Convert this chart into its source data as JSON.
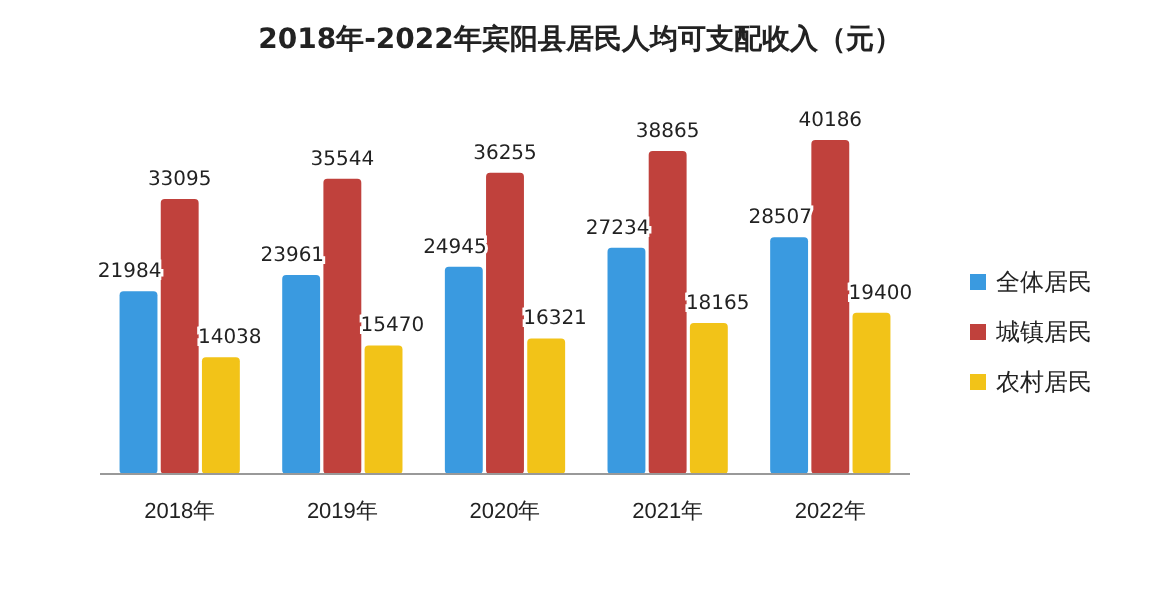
{
  "chart_data": {
    "type": "bar",
    "title": "2018年-2022年宾阳县居民人均可支配收入（元）",
    "categories": [
      "2018年",
      "2019年",
      "2020年",
      "2021年",
      "2022年"
    ],
    "series": [
      {
        "name": "全体居民",
        "color": "#3a9ae0",
        "values": [
          21984,
          23961,
          24945,
          27234,
          28507
        ]
      },
      {
        "name": "城镇居民",
        "color": "#c0413c",
        "values": [
          33095,
          35544,
          36255,
          38865,
          40186
        ]
      },
      {
        "name": "农村居民",
        "color": "#f2c318",
        "values": [
          14038,
          15470,
          16321,
          18165,
          19400
        ]
      }
    ],
    "data_labels": true,
    "legend": "right",
    "grid": false
  }
}
